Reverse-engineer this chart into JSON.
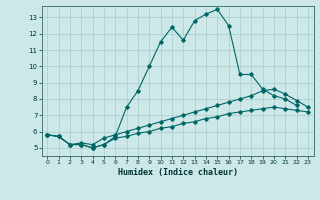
{
  "title": "",
  "xlabel": "Humidex (Indice chaleur)",
  "bg_color": "#cce8e8",
  "grid_color": "#aacccc",
  "line_color": "#006666",
  "xlim": [
    -0.5,
    23.5
  ],
  "ylim": [
    4.5,
    13.7
  ],
  "xticks": [
    0,
    1,
    2,
    3,
    4,
    5,
    6,
    7,
    8,
    9,
    10,
    11,
    12,
    13,
    14,
    15,
    16,
    17,
    18,
    19,
    20,
    21,
    22,
    23
  ],
  "yticks": [
    5,
    6,
    7,
    8,
    9,
    10,
    11,
    12,
    13
  ],
  "line1_x": [
    0,
    1,
    2,
    3,
    4,
    5,
    6,
    7,
    8,
    9,
    10,
    11,
    12,
    13,
    14,
    15,
    16,
    17,
    18,
    19,
    20,
    21,
    22
  ],
  "line1_y": [
    5.8,
    5.7,
    5.2,
    5.2,
    5.0,
    5.2,
    5.7,
    7.5,
    8.5,
    10.0,
    11.5,
    12.4,
    11.6,
    12.8,
    13.2,
    13.5,
    12.5,
    9.5,
    9.5,
    8.6,
    8.2,
    8.0,
    7.6
  ],
  "line2_x": [
    0,
    1,
    2,
    3,
    4,
    5,
    6,
    7,
    8,
    9,
    10,
    11,
    12,
    13,
    14,
    15,
    16,
    17,
    18,
    19,
    20,
    21,
    22,
    23
  ],
  "line2_y": [
    5.8,
    5.7,
    5.2,
    5.3,
    5.2,
    5.6,
    5.8,
    6.0,
    6.2,
    6.4,
    6.6,
    6.8,
    7.0,
    7.2,
    7.4,
    7.6,
    7.8,
    8.0,
    8.2,
    8.5,
    8.6,
    8.3,
    7.9,
    7.5
  ],
  "line3_x": [
    0,
    1,
    2,
    3,
    4,
    5,
    6,
    7,
    8,
    9,
    10,
    11,
    12,
    13,
    14,
    15,
    16,
    17,
    18,
    19,
    20,
    21,
    22,
    23
  ],
  "line3_y": [
    5.8,
    5.7,
    5.2,
    5.2,
    5.0,
    5.2,
    5.6,
    5.7,
    5.9,
    6.0,
    6.2,
    6.3,
    6.5,
    6.6,
    6.8,
    6.9,
    7.1,
    7.2,
    7.3,
    7.4,
    7.5,
    7.4,
    7.3,
    7.2
  ]
}
